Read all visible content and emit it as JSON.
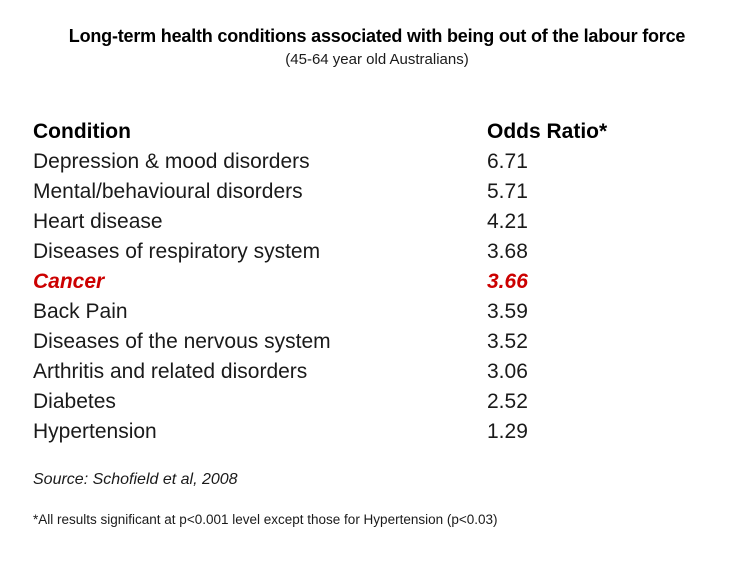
{
  "header": {
    "title": "Long-term health conditions associated with being out of the labour force",
    "subtitle": "(45-64 year old Australians)"
  },
  "table": {
    "headers": {
      "condition": "Condition",
      "odds_ratio": "Odds Ratio*"
    },
    "rows": [
      {
        "condition": "Depression & mood disorders",
        "odds_ratio": "6.71",
        "highlight": false
      },
      {
        "condition": "Mental/behavioural disorders",
        "odds_ratio": "5.71",
        "highlight": false
      },
      {
        "condition": "Heart disease",
        "odds_ratio": "4.21",
        "highlight": false
      },
      {
        "condition": "Diseases of respiratory system",
        "odds_ratio": "3.68",
        "highlight": false
      },
      {
        "condition": "Cancer",
        "odds_ratio": "3.66",
        "highlight": true
      },
      {
        "condition": "Back Pain",
        "odds_ratio": "3.59",
        "highlight": false
      },
      {
        "condition": "Diseases of the nervous system",
        "odds_ratio": "3.52",
        "highlight": false
      },
      {
        "condition": "Arthritis and related disorders",
        "odds_ratio": "3.06",
        "highlight": false
      },
      {
        "condition": "Diabetes",
        "odds_ratio": "2.52",
        "highlight": false
      },
      {
        "condition": "Hypertension",
        "odds_ratio": "1.29",
        "highlight": false
      }
    ]
  },
  "source": "Source: Schofield et al, 2008",
  "footnote": "*All results significant at p<0.001 level except those for Hypertension (p<0.03)",
  "colors": {
    "background": "#ffffff",
    "text": "#1a1a1a",
    "highlight": "#cc0000"
  },
  "chart_data": {
    "type": "table",
    "title": "Long-term health conditions associated with being out of the labour force",
    "subtitle": "(45-64 year old Australians)",
    "columns": [
      "Condition",
      "Odds Ratio*"
    ],
    "rows": [
      [
        "Depression & mood disorders",
        6.71
      ],
      [
        "Mental/behavioural disorders",
        5.71
      ],
      [
        "Heart disease",
        4.21
      ],
      [
        "Diseases of respiratory system",
        3.68
      ],
      [
        "Cancer",
        3.66
      ],
      [
        "Back Pain",
        3.59
      ],
      [
        "Diseases of the nervous system",
        3.52
      ],
      [
        "Arthritis and related disorders",
        3.06
      ],
      [
        "Diabetes",
        2.52
      ],
      [
        "Hypertension",
        1.29
      ]
    ],
    "highlighted_row": "Cancer",
    "source": "Source: Schofield et al, 2008",
    "footnote": "*All results significant at p<0.001 level except those for Hypertension (p<0.03)"
  }
}
